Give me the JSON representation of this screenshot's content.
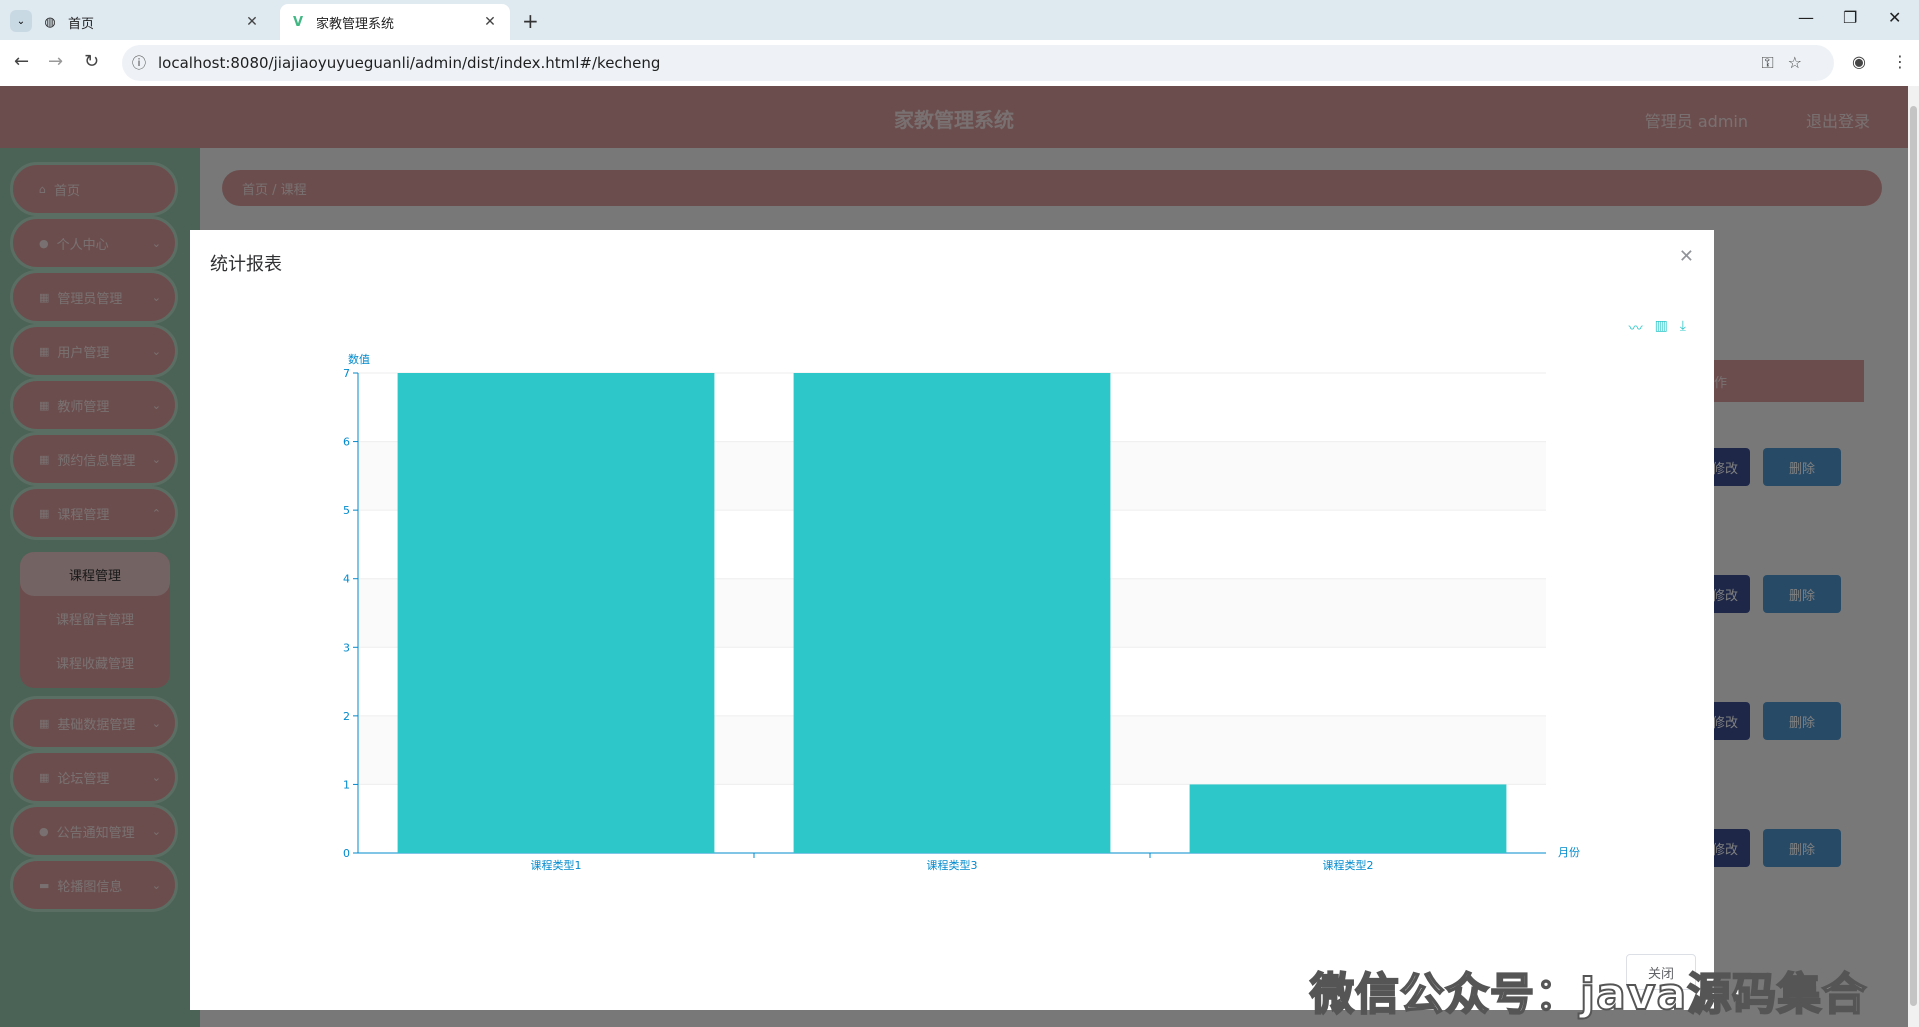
{
  "browser": {
    "tabs": [
      {
        "title": "首页",
        "active": false
      },
      {
        "title": "家教管理系统",
        "active": true
      }
    ],
    "url": "localhost:8080/jiajiaoyuyueguanli/admin/dist/index.html#/kecheng"
  },
  "app": {
    "title": "家教管理系统",
    "user_label": "管理员 admin",
    "logout_label": "退出登录",
    "breadcrumb": "首页 / 课程",
    "menu": [
      {
        "label": "首页",
        "icon": "home-icon",
        "has_arrow": false
      },
      {
        "label": "个人中心",
        "icon": "user-icon",
        "has_arrow": true
      },
      {
        "label": "管理员管理",
        "icon": "grid-icon",
        "has_arrow": true
      },
      {
        "label": "用户管理",
        "icon": "grid-icon",
        "has_arrow": true
      },
      {
        "label": "教师管理",
        "icon": "grid-icon",
        "has_arrow": true
      },
      {
        "label": "预约信息管理",
        "icon": "grid-icon",
        "has_arrow": true
      },
      {
        "label": "课程管理",
        "icon": "grid-icon",
        "has_arrow": true
      },
      {
        "label": "基础数据管理",
        "icon": "grid-icon",
        "has_arrow": true
      },
      {
        "label": "论坛管理",
        "icon": "grid-icon",
        "has_arrow": true
      },
      {
        "label": "公告通知管理",
        "icon": "user-icon",
        "has_arrow": true
      },
      {
        "label": "轮播图信息",
        "icon": "image-icon",
        "has_arrow": true
      }
    ],
    "submenu": [
      {
        "label": "课程管理",
        "active": true
      },
      {
        "label": "课程留言管理",
        "active": false
      },
      {
        "label": "课程收藏管理",
        "active": false
      }
    ],
    "table_header_partial": "作",
    "row_edit_label": "修改",
    "row_delete_label": "删除"
  },
  "dialog": {
    "title": "统计报表",
    "close_button": "关闭"
  },
  "chart_data": {
    "type": "bar",
    "categories": [
      "课程类型1",
      "课程类型3",
      "课程类型2"
    ],
    "values": [
      7,
      7,
      1
    ],
    "ylabel": "数值",
    "xlabel": "月份",
    "ylim": [
      0,
      7
    ],
    "yticks": [
      0,
      1,
      2,
      3,
      4,
      5,
      6,
      7
    ],
    "bar_color": "#2ec7c9",
    "axis_color": "#008acd",
    "toolbox": [
      "line-chart-icon",
      "bar-chart-icon",
      "download-icon"
    ]
  },
  "watermark": "微信公众号：java源码集合"
}
